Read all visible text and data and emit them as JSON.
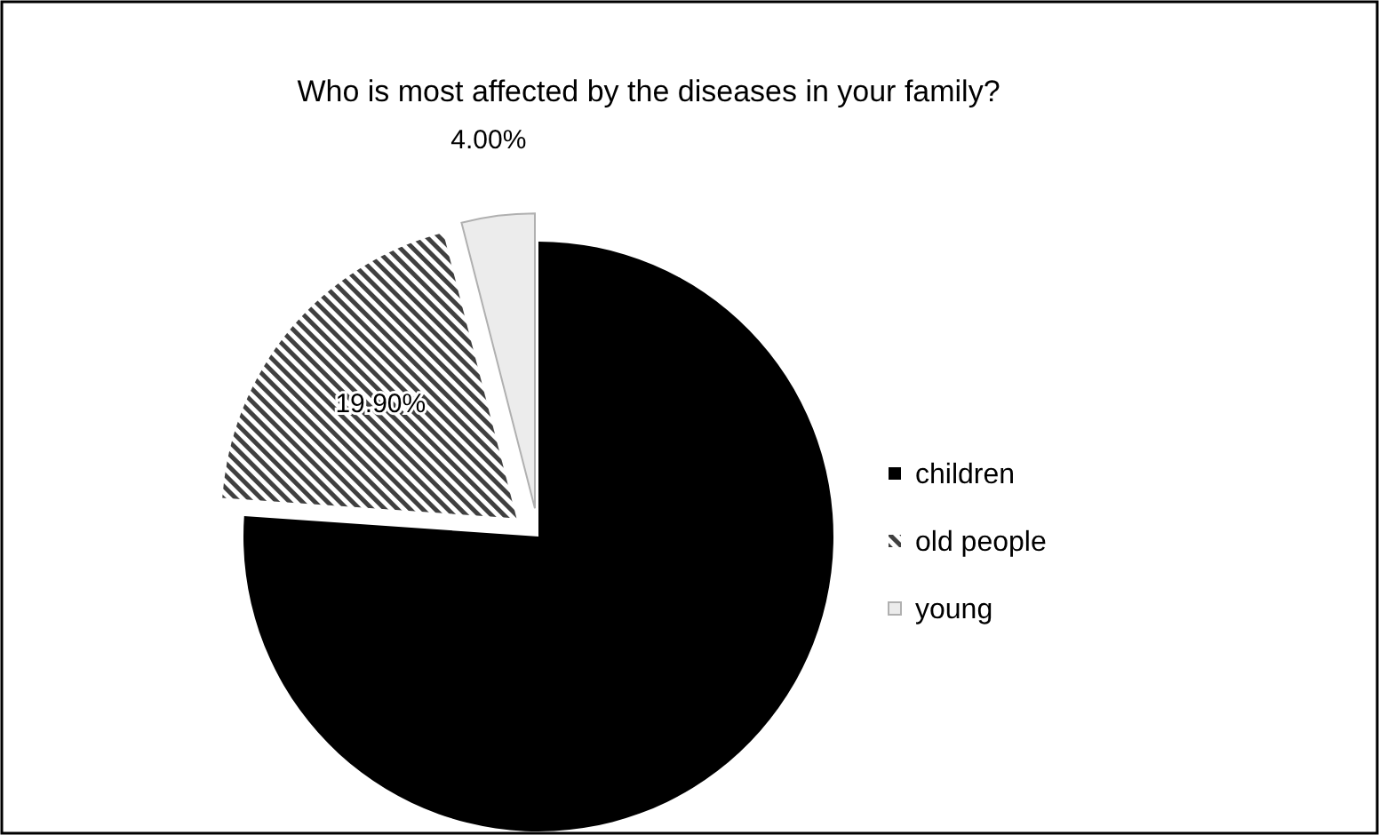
{
  "chart_data": {
    "type": "pie",
    "title": "Who is most affected by the diseases in your family?",
    "categories": [
      "children",
      "old people",
      "young"
    ],
    "values": [
      76.1,
      19.9,
      4.0
    ],
    "value_labels": [
      null,
      "19.90%",
      "4.00%"
    ],
    "colors": [
      "#000000",
      "#404040",
      "#ececec"
    ],
    "legend": "right"
  }
}
